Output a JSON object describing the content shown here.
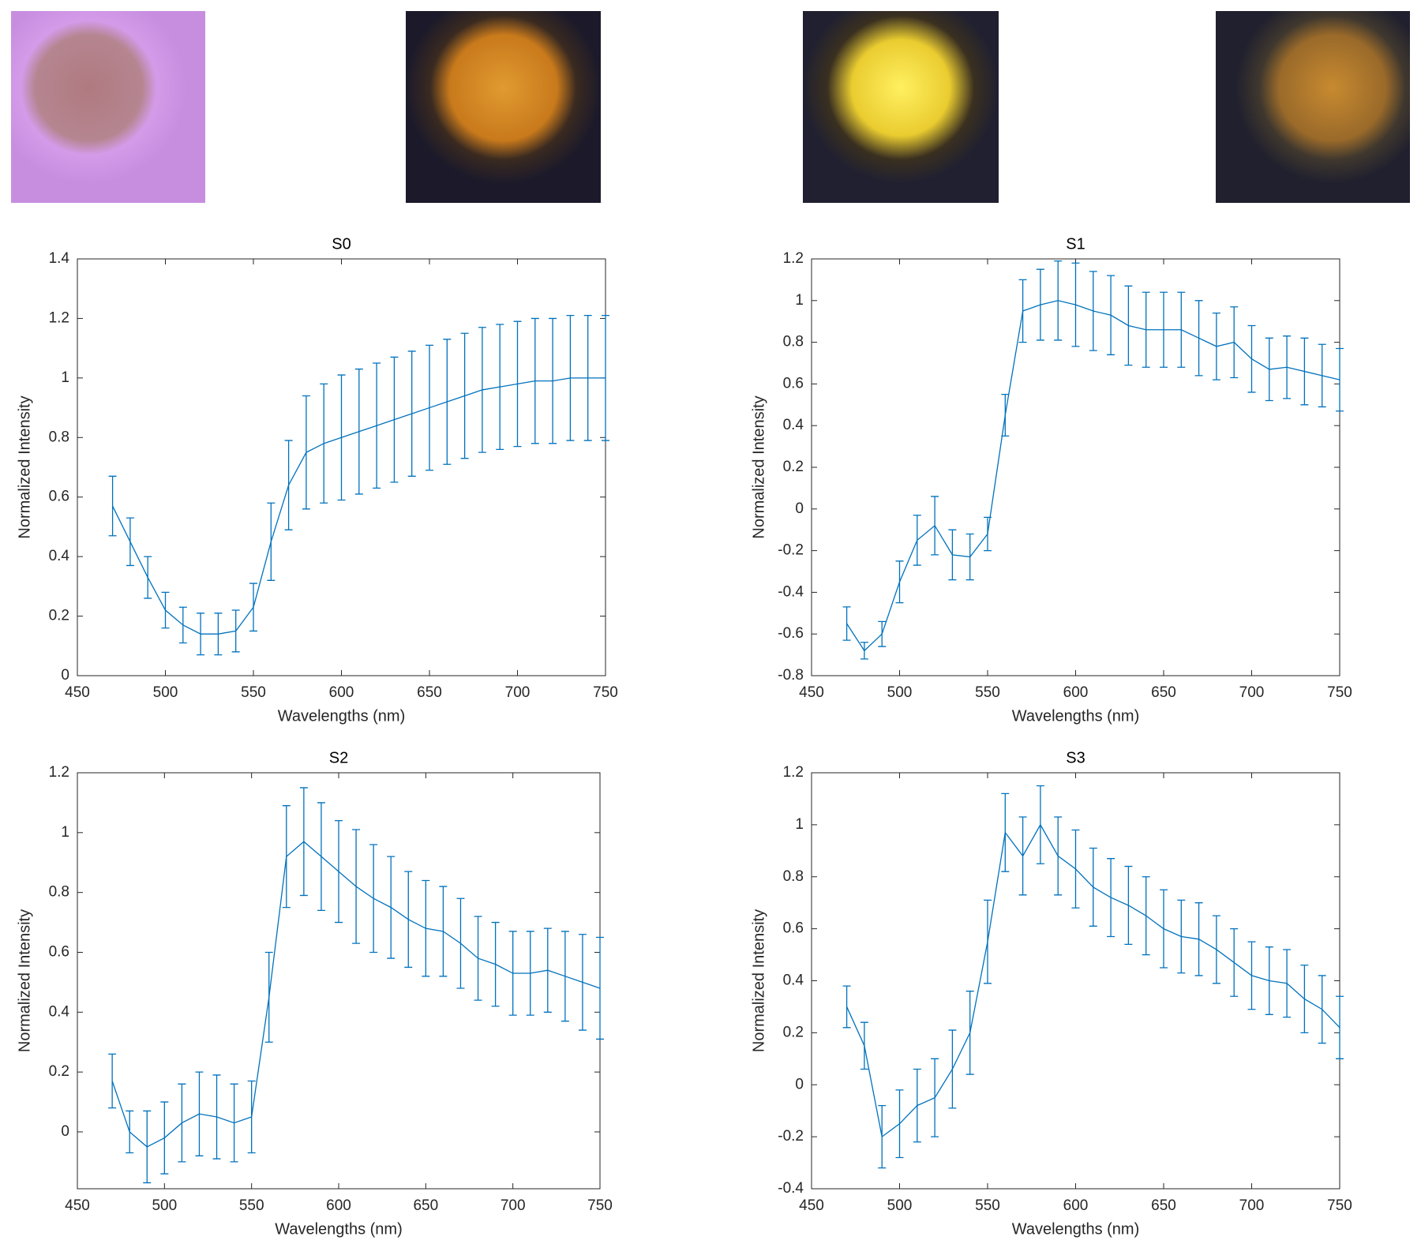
{
  "chart_data": [
    {
      "type": "line",
      "title": "S0",
      "x_label": "Wavelengths (nm)",
      "y_label": "Normalized Intensity",
      "color": "#0072bd",
      "x": [
        470,
        480,
        490,
        500,
        510,
        520,
        530,
        540,
        550,
        560,
        570,
        580,
        590,
        600,
        610,
        620,
        630,
        640,
        650,
        660,
        670,
        680,
        690,
        700,
        710,
        720,
        730,
        740,
        750
      ],
      "values": [
        0.57,
        0.45,
        0.33,
        0.22,
        0.17,
        0.14,
        0.14,
        0.15,
        0.23,
        0.45,
        0.64,
        0.75,
        0.78,
        0.8,
        0.82,
        0.84,
        0.86,
        0.88,
        0.9,
        0.92,
        0.94,
        0.96,
        0.97,
        0.98,
        0.99,
        0.99,
        1.0,
        1.0,
        1.0
      ],
      "errors": [
        0.1,
        0.08,
        0.07,
        0.06,
        0.06,
        0.07,
        0.07,
        0.07,
        0.08,
        0.13,
        0.15,
        0.19,
        0.2,
        0.21,
        0.21,
        0.21,
        0.21,
        0.21,
        0.21,
        0.21,
        0.21,
        0.21,
        0.21,
        0.21,
        0.21,
        0.21,
        0.21,
        0.21,
        0.21
      ],
      "xlim": [
        450,
        750
      ],
      "xticks": [
        450,
        500,
        550,
        600,
        650,
        700,
        750
      ],
      "ylim": [
        0,
        1.4
      ],
      "yticks": [
        0,
        0.2,
        0.4,
        0.6,
        0.8,
        1,
        1.2,
        1.4
      ]
    },
    {
      "type": "line",
      "title": "S1",
      "x_label": "Wavelengths (nm)",
      "y_label": "Normalized Intensity",
      "color": "#0072bd",
      "x": [
        470,
        480,
        490,
        500,
        510,
        520,
        530,
        540,
        550,
        560,
        570,
        580,
        590,
        600,
        610,
        620,
        630,
        640,
        650,
        660,
        670,
        680,
        690,
        700,
        710,
        720,
        730,
        740,
        750
      ],
      "values": [
        -0.55,
        -0.68,
        -0.6,
        -0.35,
        -0.15,
        -0.08,
        -0.22,
        -0.23,
        -0.12,
        0.45,
        0.95,
        0.98,
        1.0,
        0.98,
        0.95,
        0.93,
        0.88,
        0.86,
        0.86,
        0.86,
        0.82,
        0.78,
        0.8,
        0.72,
        0.67,
        0.68,
        0.66,
        0.64,
        0.62
      ],
      "errors": [
        0.08,
        0.04,
        0.06,
        0.1,
        0.12,
        0.14,
        0.12,
        0.11,
        0.08,
        0.1,
        0.15,
        0.17,
        0.19,
        0.2,
        0.19,
        0.19,
        0.19,
        0.18,
        0.18,
        0.18,
        0.18,
        0.16,
        0.17,
        0.16,
        0.15,
        0.15,
        0.16,
        0.15,
        0.15
      ],
      "xlim": [
        450,
        750
      ],
      "xticks": [
        450,
        500,
        550,
        600,
        650,
        700,
        750
      ],
      "ylim": [
        -0.8,
        1.2
      ],
      "yticks": [
        -0.8,
        -0.6,
        -0.4,
        -0.2,
        0,
        0.2,
        0.4,
        0.6,
        0.8,
        1,
        1.2
      ]
    },
    {
      "type": "line",
      "title": "S2",
      "x_label": "Wavelengths (nm)",
      "y_label": "Normalized Intensity",
      "color": "#0072bd",
      "x": [
        470,
        480,
        490,
        500,
        510,
        520,
        530,
        540,
        550,
        560,
        570,
        580,
        590,
        600,
        610,
        620,
        630,
        640,
        650,
        660,
        670,
        680,
        690,
        700,
        710,
        720,
        730,
        740,
        750
      ],
      "values": [
        0.17,
        0.0,
        -0.05,
        -0.02,
        0.03,
        0.06,
        0.05,
        0.03,
        0.05,
        0.45,
        0.92,
        0.97,
        0.92,
        0.87,
        0.82,
        0.78,
        0.75,
        0.71,
        0.68,
        0.67,
        0.63,
        0.58,
        0.56,
        0.53,
        0.53,
        0.54,
        0.52,
        0.5,
        0.48
      ],
      "errors": [
        0.09,
        0.07,
        0.12,
        0.12,
        0.13,
        0.14,
        0.14,
        0.13,
        0.12,
        0.15,
        0.17,
        0.18,
        0.18,
        0.17,
        0.19,
        0.18,
        0.17,
        0.16,
        0.16,
        0.15,
        0.15,
        0.14,
        0.14,
        0.14,
        0.14,
        0.14,
        0.15,
        0.16,
        0.17
      ],
      "xlim": [
        450,
        750
      ],
      "xticks": [
        450,
        500,
        550,
        600,
        650,
        700,
        750
      ],
      "ylim": [
        -0.19,
        1.2
      ],
      "yticks": [
        0,
        0.2,
        0.4,
        0.6,
        0.8,
        1,
        1.2
      ]
    },
    {
      "type": "line",
      "title": "S3",
      "x_label": "Wavelengths (nm)",
      "y_label": "Normalized Intensity",
      "color": "#0072bd",
      "x": [
        470,
        480,
        490,
        500,
        510,
        520,
        530,
        540,
        550,
        560,
        570,
        580,
        590,
        600,
        610,
        620,
        630,
        640,
        650,
        660,
        670,
        680,
        690,
        700,
        710,
        720,
        730,
        740,
        750
      ],
      "values": [
        0.3,
        0.15,
        -0.2,
        -0.15,
        -0.08,
        -0.05,
        0.06,
        0.2,
        0.55,
        0.97,
        0.88,
        1.0,
        0.88,
        0.83,
        0.76,
        0.72,
        0.69,
        0.65,
        0.6,
        0.57,
        0.56,
        0.52,
        0.47,
        0.42,
        0.4,
        0.39,
        0.33,
        0.29,
        0.22
      ],
      "errors": [
        0.08,
        0.09,
        0.12,
        0.13,
        0.14,
        0.15,
        0.15,
        0.16,
        0.16,
        0.15,
        0.15,
        0.15,
        0.15,
        0.15,
        0.15,
        0.15,
        0.15,
        0.15,
        0.15,
        0.14,
        0.14,
        0.13,
        0.13,
        0.13,
        0.13,
        0.13,
        0.13,
        0.13,
        0.12
      ],
      "xlim": [
        450,
        750
      ],
      "xticks": [
        450,
        500,
        550,
        600,
        650,
        700,
        750
      ],
      "ylim": [
        -0.4,
        1.2
      ],
      "yticks": [
        -0.4,
        -0.2,
        0,
        0.2,
        0.4,
        0.6,
        0.8,
        1,
        1.2
      ]
    }
  ]
}
